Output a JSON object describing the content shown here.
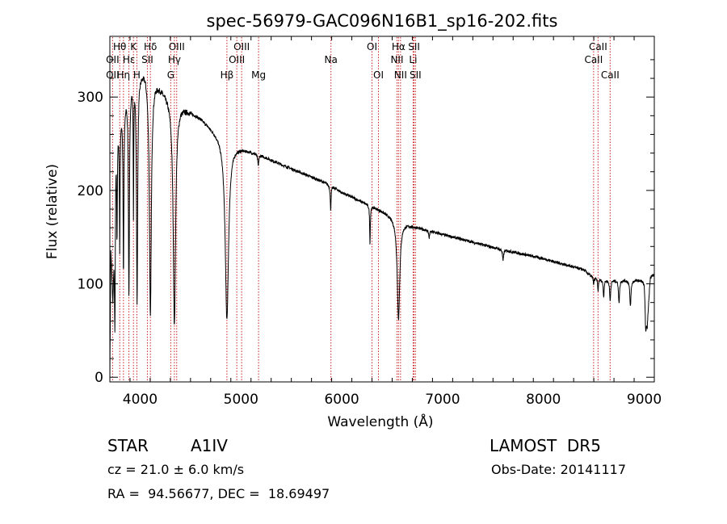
{
  "chart_data": {
    "type": "line",
    "title": "spec-56979-GAC096N16B1_sp16-202.fits",
    "xlabel": "Wavelength (Å)",
    "ylabel": "Flux (relative)",
    "xlim": [
      3700,
      9100
    ],
    "ylim": [
      -5,
      365
    ],
    "x_ticks": [
      4000,
      5000,
      6000,
      7000,
      8000,
      9000
    ],
    "y_ticks": [
      0,
      100,
      200,
      300
    ],
    "grid": false,
    "line_color": "#000000",
    "marker_color": "#cc2222",
    "continuum": [
      [
        3700,
        0
      ],
      [
        3710,
        140
      ],
      [
        3730,
        90
      ],
      [
        3760,
        260
      ],
      [
        3800,
        285
      ],
      [
        3850,
        300
      ],
      [
        3900,
        318
      ],
      [
        3950,
        325
      ],
      [
        4000,
        328
      ],
      [
        4050,
        330
      ],
      [
        4080,
        320
      ],
      [
        4100,
        315
      ],
      [
        4150,
        318
      ],
      [
        4200,
        312
      ],
      [
        4250,
        305
      ],
      [
        4300,
        298
      ],
      [
        4350,
        290
      ],
      [
        4400,
        292
      ],
      [
        4450,
        288
      ],
      [
        4500,
        285
      ],
      [
        4600,
        278
      ],
      [
        4700,
        268
      ],
      [
        4800,
        258
      ],
      [
        4860,
        252
      ],
      [
        4900,
        250
      ],
      [
        5000,
        246
      ],
      [
        5200,
        238
      ],
      [
        5400,
        228
      ],
      [
        5600,
        219
      ],
      [
        5800,
        210
      ],
      [
        5900,
        205
      ],
      [
        6000,
        198
      ],
      [
        6200,
        188
      ],
      [
        6400,
        178
      ],
      [
        6563,
        168
      ],
      [
        6700,
        162
      ],
      [
        7000,
        153
      ],
      [
        7500,
        139
      ],
      [
        8000,
        127
      ],
      [
        8400,
        115
      ],
      [
        8500,
        106
      ],
      [
        8600,
        104
      ],
      [
        8800,
        104
      ],
      [
        9000,
        104
      ],
      [
        9030,
        60
      ],
      [
        9060,
        108
      ],
      [
        9100,
        110
      ]
    ],
    "absorption": [
      [
        3750,
        150,
        5
      ],
      [
        3771,
        110,
        4
      ],
      [
        3798,
        140,
        4
      ],
      [
        3835,
        180,
        5
      ],
      [
        3889,
        225,
        6
      ],
      [
        3934,
        140,
        3
      ],
      [
        3970,
        245,
        7
      ],
      [
        4102,
        250,
        11
      ],
      [
        4340,
        235,
        14
      ],
      [
        4861,
        190,
        20
      ],
      [
        5172,
        12,
        6
      ],
      [
        5890,
        26,
        5
      ],
      [
        6280,
        40,
        4
      ],
      [
        6563,
        105,
        15
      ],
      [
        6867,
        8,
        5
      ],
      [
        7600,
        12,
        6
      ],
      [
        8498,
        8,
        3
      ],
      [
        8542,
        14,
        4
      ],
      [
        8598,
        18,
        5
      ],
      [
        8662,
        22,
        6
      ],
      [
        8750,
        25,
        6
      ],
      [
        8863,
        28,
        7
      ],
      [
        9015,
        32,
        8
      ]
    ],
    "line_labels": [
      {
        "text": "Hθ",
        "wl": 3798,
        "row": 0
      },
      {
        "text": "K",
        "wl": 3934,
        "row": 0
      },
      {
        "text": "Hδ",
        "wl": 4102,
        "row": 0
      },
      {
        "text": "OIII",
        "wl": 4363,
        "row": 0
      },
      {
        "text": "OIII",
        "wl": 5007,
        "row": 0
      },
      {
        "text": "OI",
        "wl": 6300,
        "row": 0
      },
      {
        "text": "Hα",
        "wl": 6563,
        "row": 0
      },
      {
        "text": "SII",
        "wl": 6717,
        "row": 0
      },
      {
        "text": "CaII",
        "wl": 8542,
        "row": 0
      },
      {
        "text": "OII",
        "wl": 3727,
        "row": 1
      },
      {
        "text": "Hε",
        "wl": 3889,
        "row": 1
      },
      {
        "text": "SII",
        "wl": 4072,
        "row": 1
      },
      {
        "text": "Hγ",
        "wl": 4340,
        "row": 1
      },
      {
        "text": "OIII",
        "wl": 4959,
        "row": 1
      },
      {
        "text": "Na",
        "wl": 5893,
        "row": 1
      },
      {
        "text": "NII",
        "wl": 6548,
        "row": 1
      },
      {
        "text": "Li",
        "wl": 6708,
        "row": 1
      },
      {
        "text": "CaII",
        "wl": 8498,
        "row": 1
      },
      {
        "text": "OII",
        "wl": 3727,
        "row": 2
      },
      {
        "text": "Hη",
        "wl": 3835,
        "row": 2
      },
      {
        "text": "H",
        "wl": 3968,
        "row": 2
      },
      {
        "text": "G",
        "wl": 4304,
        "row": 2
      },
      {
        "text": "Hβ",
        "wl": 4861,
        "row": 2
      },
      {
        "text": "Mg",
        "wl": 5175,
        "row": 2
      },
      {
        "text": "OI",
        "wl": 6364,
        "row": 2
      },
      {
        "text": "NII",
        "wl": 6583,
        "row": 2
      },
      {
        "text": "SII",
        "wl": 6731,
        "row": 2
      },
      {
        "text": "CaII",
        "wl": 8662,
        "row": 2
      }
    ],
    "markers": [
      3727,
      3798,
      3835,
      3889,
      3934,
      3968,
      4072,
      4102,
      4304,
      4340,
      4363,
      4861,
      4959,
      5007,
      5175,
      5893,
      6300,
      6364,
      6548,
      6563,
      6583,
      6708,
      6717,
      6731,
      8498,
      8542,
      8662
    ]
  },
  "info": {
    "object_type": "STAR",
    "spectral_class": "A1IV",
    "survey": "LAMOST  DR5",
    "redshift": "cz = 21.0 ± 6.0 km/s",
    "obs_date": "Obs-Date: 20141117",
    "coords": "RA =  94.56677, DEC =  18.69497"
  }
}
